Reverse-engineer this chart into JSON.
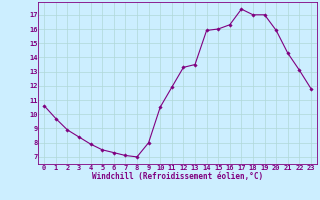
{
  "x": [
    0,
    1,
    2,
    3,
    4,
    5,
    6,
    7,
    8,
    9,
    10,
    11,
    12,
    13,
    14,
    15,
    16,
    17,
    18,
    19,
    20,
    21,
    22,
    23
  ],
  "y": [
    10.6,
    9.7,
    8.9,
    8.4,
    7.9,
    7.5,
    7.3,
    7.1,
    7.0,
    8.0,
    10.5,
    11.9,
    13.3,
    13.5,
    15.9,
    16.0,
    16.3,
    17.4,
    17.0,
    17.0,
    15.9,
    14.3,
    13.1,
    11.8
  ],
  "xlim": [
    -0.5,
    23.5
  ],
  "ylim": [
    6.5,
    17.9
  ],
  "yticks": [
    7,
    8,
    9,
    10,
    11,
    12,
    13,
    14,
    15,
    16,
    17
  ],
  "xticks": [
    0,
    1,
    2,
    3,
    4,
    5,
    6,
    7,
    8,
    9,
    10,
    11,
    12,
    13,
    14,
    15,
    16,
    17,
    18,
    19,
    20,
    21,
    22,
    23
  ],
  "xlabel": "Windchill (Refroidissement éolien,°C)",
  "line_color": "#800080",
  "marker": "D",
  "marker_size": 1.8,
  "line_width": 0.8,
  "bg_color": "#cceeff",
  "grid_color": "#b0d8d8",
  "tick_label_color": "#800080",
  "xlabel_color": "#800080",
  "font_family": "monospace",
  "tick_fontsize": 5.0,
  "xlabel_fontsize": 5.5
}
